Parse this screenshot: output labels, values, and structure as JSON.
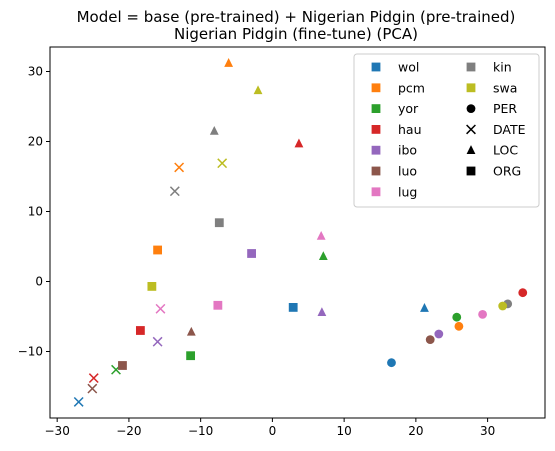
{
  "chart_data": {
    "type": "scatter",
    "title": [
      "Model = base (pre-trained) + Nigerian Pidgin (pre-trained)",
      "Nigerian Pidgin (fine-tune) (PCA)"
    ],
    "xlabel": "",
    "ylabel": "",
    "xlim": [
      -31,
      38
    ],
    "ylim": [
      -19.5,
      33.5
    ],
    "xticks": [
      -30,
      -20,
      -10,
      0,
      10,
      20,
      30
    ],
    "yticks": [
      -10,
      0,
      10,
      20,
      30
    ],
    "grid": false,
    "legend_position": "top-right",
    "languages": [
      {
        "name": "wol",
        "color": "#1f77b4"
      },
      {
        "name": "pcm",
        "color": "#ff7f0e"
      },
      {
        "name": "yor",
        "color": "#2ca02c"
      },
      {
        "name": "hau",
        "color": "#d62728"
      },
      {
        "name": "ibo",
        "color": "#9467bd"
      },
      {
        "name": "luo",
        "color": "#8c564b"
      },
      {
        "name": "lug",
        "color": "#e377c2"
      },
      {
        "name": "kin",
        "color": "#7f7f7f"
      },
      {
        "name": "swa",
        "color": "#bcbd22"
      }
    ],
    "entity_types": [
      {
        "name": "PER",
        "marker": "circle"
      },
      {
        "name": "DATE",
        "marker": "x"
      },
      {
        "name": "LOC",
        "marker": "triangle"
      },
      {
        "name": "ORG",
        "marker": "square"
      }
    ],
    "points": [
      {
        "lang": "wol",
        "entity": "PER",
        "x": 16.6,
        "y": -11.6
      },
      {
        "lang": "wol",
        "entity": "DATE",
        "x": -27.0,
        "y": -17.2
      },
      {
        "lang": "wol",
        "entity": "LOC",
        "x": 21.2,
        "y": -3.8
      },
      {
        "lang": "wol",
        "entity": "ORG",
        "x": 2.9,
        "y": -3.7
      },
      {
        "lang": "pcm",
        "entity": "PER",
        "x": 26.0,
        "y": -6.4
      },
      {
        "lang": "pcm",
        "entity": "DATE",
        "x": -13.0,
        "y": 16.3
      },
      {
        "lang": "pcm",
        "entity": "LOC",
        "x": -6.1,
        "y": 31.2
      },
      {
        "lang": "pcm",
        "entity": "ORG",
        "x": -16.0,
        "y": 4.5
      },
      {
        "lang": "yor",
        "entity": "PER",
        "x": 25.7,
        "y": -5.1
      },
      {
        "lang": "yor",
        "entity": "DATE",
        "x": -21.8,
        "y": -12.6
      },
      {
        "lang": "yor",
        "entity": "LOC",
        "x": 7.1,
        "y": 3.6
      },
      {
        "lang": "yor",
        "entity": "ORG",
        "x": -11.4,
        "y": -10.6
      },
      {
        "lang": "hau",
        "entity": "PER",
        "x": 34.9,
        "y": -1.6
      },
      {
        "lang": "hau",
        "entity": "DATE",
        "x": -24.9,
        "y": -13.8
      },
      {
        "lang": "hau",
        "entity": "LOC",
        "x": 3.7,
        "y": 19.7
      },
      {
        "lang": "hau",
        "entity": "ORG",
        "x": -18.4,
        "y": -7.0
      },
      {
        "lang": "ibo",
        "entity": "PER",
        "x": 23.2,
        "y": -7.5
      },
      {
        "lang": "ibo",
        "entity": "DATE",
        "x": -16.0,
        "y": -8.6
      },
      {
        "lang": "ibo",
        "entity": "LOC",
        "x": 6.9,
        "y": -4.4
      },
      {
        "lang": "ibo",
        "entity": "ORG",
        "x": -2.9,
        "y": 4.0
      },
      {
        "lang": "luo",
        "entity": "PER",
        "x": 22.0,
        "y": -8.3
      },
      {
        "lang": "luo",
        "entity": "DATE",
        "x": -25.1,
        "y": -15.3
      },
      {
        "lang": "luo",
        "entity": "LOC",
        "x": -11.3,
        "y": -7.2
      },
      {
        "lang": "luo",
        "entity": "ORG",
        "x": -20.9,
        "y": -12.0
      },
      {
        "lang": "lug",
        "entity": "PER",
        "x": 29.3,
        "y": -4.7
      },
      {
        "lang": "lug",
        "entity": "DATE",
        "x": -15.6,
        "y": -3.9
      },
      {
        "lang": "lug",
        "entity": "LOC",
        "x": 6.8,
        "y": 6.5
      },
      {
        "lang": "lug",
        "entity": "ORG",
        "x": -7.6,
        "y": -3.4
      },
      {
        "lang": "kin",
        "entity": "PER",
        "x": 32.8,
        "y": -3.2
      },
      {
        "lang": "kin",
        "entity": "DATE",
        "x": -13.6,
        "y": 12.9
      },
      {
        "lang": "kin",
        "entity": "LOC",
        "x": -8.1,
        "y": 21.5
      },
      {
        "lang": "kin",
        "entity": "ORG",
        "x": -7.4,
        "y": 8.4
      },
      {
        "lang": "swa",
        "entity": "PER",
        "x": 32.1,
        "y": -3.5
      },
      {
        "lang": "swa",
        "entity": "DATE",
        "x": -7.0,
        "y": 16.9
      },
      {
        "lang": "swa",
        "entity": "LOC",
        "x": -2.0,
        "y": 27.3
      },
      {
        "lang": "swa",
        "entity": "ORG",
        "x": -16.8,
        "y": -0.7
      }
    ]
  }
}
